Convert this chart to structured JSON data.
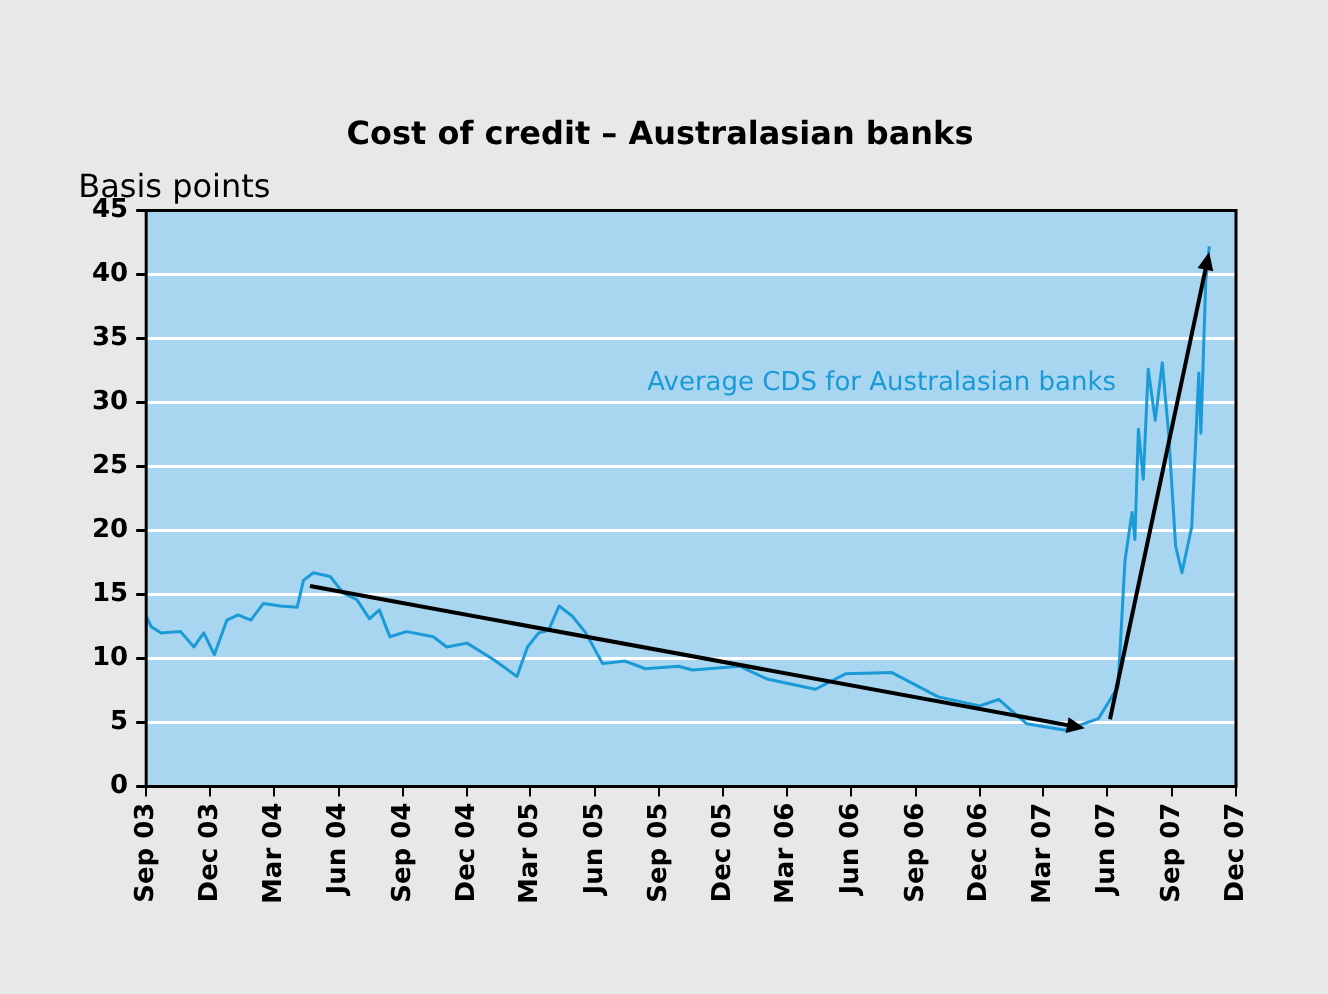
{
  "chart_data": {
    "type": "line",
    "title": "Cost of credit – Australasian banks",
    "ylabel": "Basis points",
    "xlim": [
      "2003-09-01",
      "2007-12-01"
    ],
    "xticks": [
      {
        "value": "2003-09-01",
        "label": "Sep 03"
      },
      {
        "value": "2003-12-01",
        "label": "Dec 03"
      },
      {
        "value": "2004-03-01",
        "label": "Mar 04"
      },
      {
        "value": "2004-06-01",
        "label": "Jun 04"
      },
      {
        "value": "2004-09-01",
        "label": "Sep 04"
      },
      {
        "value": "2004-12-01",
        "label": "Dec 04"
      },
      {
        "value": "2005-03-01",
        "label": "Mar 05"
      },
      {
        "value": "2005-06-01",
        "label": "Jun 05"
      },
      {
        "value": "2005-09-01",
        "label": "Sep 05"
      },
      {
        "value": "2005-12-01",
        "label": "Dec 05"
      },
      {
        "value": "2006-03-01",
        "label": "Mar 06"
      },
      {
        "value": "2006-06-01",
        "label": "Jun 06"
      },
      {
        "value": "2006-09-01",
        "label": "Sep 06"
      },
      {
        "value": "2006-12-01",
        "label": "Dec 06"
      },
      {
        "value": "2007-03-01",
        "label": "Mar 07"
      },
      {
        "value": "2007-06-01",
        "label": "Jun 07"
      },
      {
        "value": "2007-09-01",
        "label": "Sep 07"
      },
      {
        "value": "2007-12-01",
        "label": "Dec 07"
      }
    ],
    "ylim": [
      0,
      45
    ],
    "yticks": [
      0,
      5,
      10,
      15,
      20,
      25,
      30,
      35,
      40,
      45
    ],
    "grid": "y",
    "legend": false,
    "marker": "none",
    "line_style": "solid",
    "series": [
      {
        "name": "Average CDS for Australasian banks",
        "color": "#1a9ad6",
        "x": [
          "2003-09-01",
          "2003-09-08",
          "2003-09-22",
          "2003-10-20",
          "2003-11-08",
          "2003-11-22",
          "2003-12-07",
          "2003-12-25",
          "2004-01-10",
          "2004-01-28",
          "2004-02-15",
          "2004-03-10",
          "2004-04-03",
          "2004-04-12",
          "2004-04-26",
          "2004-05-20",
          "2004-06-08",
          "2004-06-27",
          "2004-07-15",
          "2004-07-29",
          "2004-08-13",
          "2004-09-06",
          "2004-10-14",
          "2004-11-02",
          "2004-12-01",
          "2005-01-08",
          "2005-02-10",
          "2005-02-25",
          "2005-03-13",
          "2005-03-27",
          "2005-04-11",
          "2005-04-30",
          "2005-05-19",
          "2005-06-12",
          "2005-07-14",
          "2005-08-12",
          "2005-09-28",
          "2005-10-18",
          "2005-12-24",
          "2006-02-01",
          "2006-04-11",
          "2006-05-24",
          "2006-07-29",
          "2006-10-03",
          "2006-12-01",
          "2006-12-28",
          "2007-02-06",
          "2007-04-02",
          "2007-05-19",
          "2007-06-16",
          "2007-06-26",
          "2007-07-06",
          "2007-07-10",
          "2007-07-15",
          "2007-07-22",
          "2007-07-29",
          "2007-08-08",
          "2007-08-18",
          "2007-08-27",
          "2007-09-06",
          "2007-09-15",
          "2007-09-29",
          "2007-10-09",
          "2007-10-12",
          "2007-10-19",
          "2007-10-24"
        ],
        "values": [
          13.3,
          12.5,
          12.0,
          12.1,
          10.9,
          12.0,
          10.3,
          13.0,
          13.4,
          13.0,
          14.3,
          14.1,
          14.0,
          16.1,
          16.7,
          16.4,
          15.1,
          14.6,
          13.1,
          13.8,
          11.7,
          12.1,
          11.7,
          10.9,
          11.2,
          9.9,
          8.6,
          10.9,
          12.0,
          12.2,
          14.1,
          13.3,
          12.0,
          9.6,
          9.8,
          9.2,
          9.4,
          9.1,
          9.4,
          8.4,
          7.6,
          8.8,
          8.9,
          7.0,
          6.3,
          6.8,
          4.9,
          4.4,
          5.3,
          7.8,
          17.7,
          21.4,
          19.3,
          27.9,
          24.0,
          32.6,
          28.6,
          33.1,
          27.6,
          18.8,
          16.7,
          20.3,
          32.3,
          27.6,
          39.6,
          42.2
        ]
      }
    ]
  }
}
